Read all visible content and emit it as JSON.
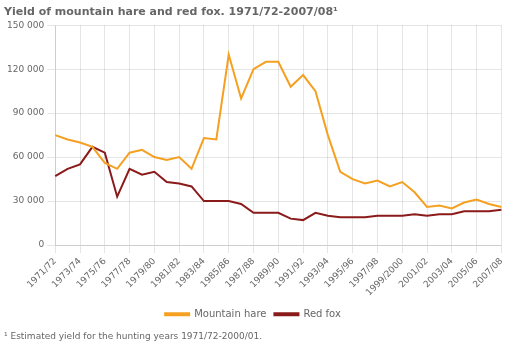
{
  "chart_data": {
    "type": "line",
    "title": "Yield of mountain hare and red fox. 1971/72-2007/08¹",
    "annotations": [
      "¹ Estimated yield for the hunting years 1971/72-2000/01."
    ],
    "categories": [
      "1971/72",
      null,
      "1973/74",
      null,
      "1975/76",
      null,
      "1977/78",
      null,
      "1979/80",
      null,
      "1981/82",
      null,
      "1983/84",
      null,
      "1985/86",
      null,
      "1987/88",
      null,
      "1989/90",
      null,
      "1991/92",
      null,
      "1993/94",
      null,
      "1995/96",
      null,
      "1997/98",
      null,
      "1999/2000",
      null,
      "2001/02",
      null,
      "2003/04",
      null,
      "2005/06",
      null,
      "2007/08"
    ],
    "series": [
      {
        "name": "Mountain hare",
        "color": "#F5A020",
        "values": [
          75000,
          72000,
          70000,
          67000,
          56000,
          52000,
          63000,
          65000,
          60000,
          58000,
          60000,
          52000,
          73000,
          72000,
          130000,
          100000,
          120000,
          125000,
          125000,
          108000,
          116000,
          105000,
          75000,
          50000,
          45000,
          42000,
          44000,
          40000,
          43000,
          36000,
          26000,
          27000,
          25000,
          29000,
          31000,
          28000,
          26000
        ]
      },
      {
        "name": "Red fox",
        "color": "#8B1A1A",
        "values": [
          47000,
          52000,
          55000,
          67000,
          63000,
          33000,
          52000,
          48000,
          50000,
          43000,
          42000,
          40000,
          30000,
          30000,
          30000,
          28000,
          22000,
          22000,
          22000,
          18000,
          17000,
          22000,
          20000,
          19000,
          19000,
          19000,
          20000,
          20000,
          20000,
          21000,
          20000,
          21000,
          21000,
          23000,
          23000,
          23000,
          24000
        ]
      }
    ],
    "ylim": [
      0,
      150000
    ],
    "yticks": [
      0,
      {
        "value": 30000,
        "label": "30 000"
      },
      {
        "value": 60000,
        "label": "60 000"
      },
      {
        "value": 90000,
        "label": "90 000"
      },
      {
        "value": 120000,
        "label": "120 000"
      },
      {
        "value": 150000,
        "label": "150 000"
      }
    ],
    "grid": true,
    "legend": "bottom"
  }
}
